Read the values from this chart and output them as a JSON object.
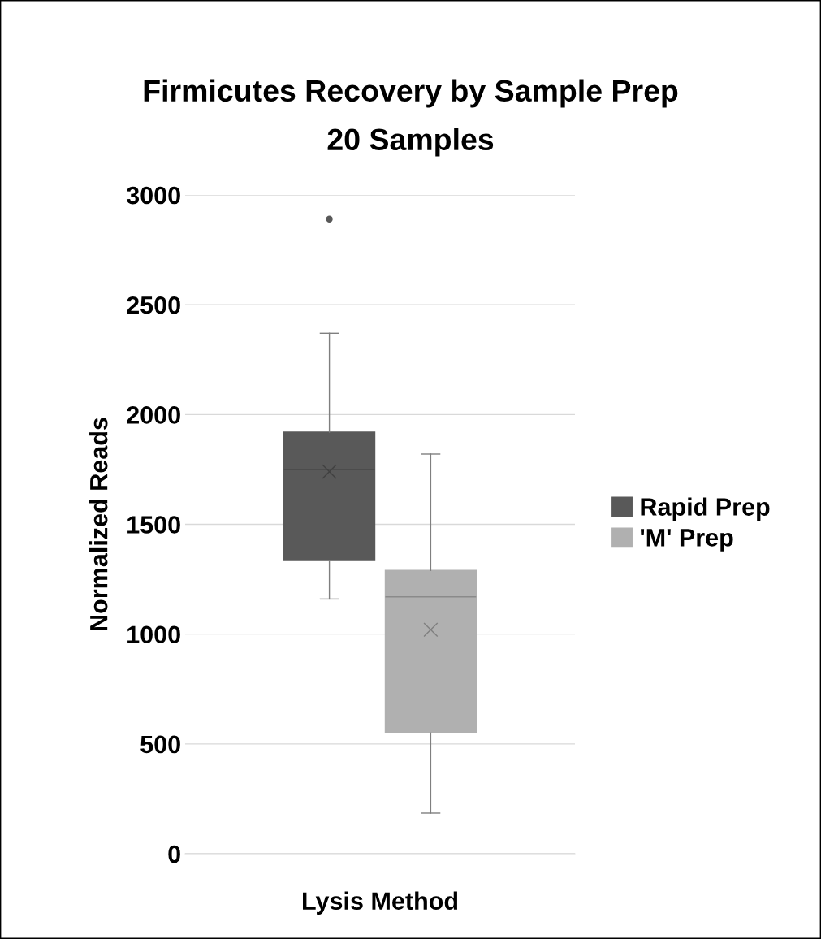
{
  "chart_data": {
    "type": "box",
    "title": "Firmicutes Recovery by Sample Prep",
    "subtitle": "20 Samples",
    "xlabel": "Lysis Method",
    "ylabel": "Normalized Reads",
    "categories": [
      null
    ],
    "series": [
      {
        "name": "Rapid Prep",
        "color": "#595959",
        "boxes": [
          {
            "low": 1160,
            "q1": 1335,
            "median": 1750,
            "q3": 1920,
            "high": 2370,
            "mean": 1740,
            "outliers": [
              2890
            ]
          }
        ]
      },
      {
        "name": "'M' Prep",
        "color": "#b0b0b0",
        "boxes": [
          {
            "low": 185,
            "q1": 550,
            "median": 1170,
            "q3": 1290,
            "high": 1820,
            "mean": 1020
          }
        ]
      }
    ],
    "ylim": [
      0,
      3000
    ],
    "yticks": [
      0,
      500,
      1000,
      1500,
      2000,
      2500,
      3000
    ],
    "grid": "y",
    "legend": "right"
  }
}
